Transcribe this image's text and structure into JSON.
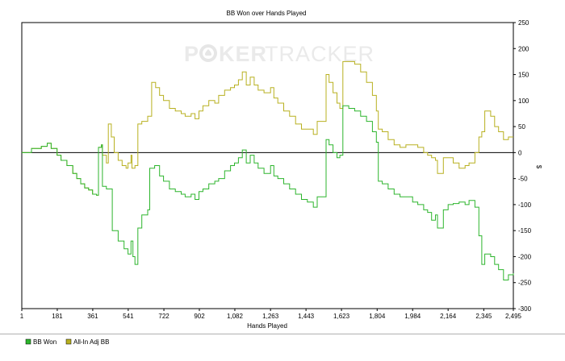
{
  "chart_data": {
    "type": "line",
    "title": "BB Won over Hands Played",
    "xlabel": "Hands Played",
    "ylabel": "",
    "y_unit_label": "$",
    "watermark": {
      "part1": "P",
      "part2": "KER",
      "part3": "TRACKER"
    },
    "xlim": [
      1,
      2495
    ],
    "ylim": [
      -300,
      250
    ],
    "x_ticks": [
      1,
      181,
      361,
      541,
      722,
      902,
      1082,
      1263,
      1443,
      1623,
      1804,
      1984,
      2164,
      2345,
      2495
    ],
    "x_tick_labels": [
      "1",
      "181",
      "361",
      "541",
      "722",
      "902",
      "1,082",
      "1,263",
      "1,443",
      "1,623",
      "1,804",
      "1,984",
      "2,164",
      "2,345",
      "2,495"
    ],
    "y_ticks": [
      -300,
      -250,
      -200,
      -150,
      -100,
      -50,
      0,
      50,
      100,
      150,
      200,
      250
    ],
    "y_tick_labels": [
      "-300",
      "-250",
      "-200",
      "-150",
      "-100",
      "-50",
      "0",
      "50",
      "100",
      "150",
      "200",
      "250"
    ],
    "y_axis_position": "right",
    "grid": false,
    "zero_line": true,
    "legend_position": "bottom-left",
    "series": [
      {
        "name": "BB Won",
        "color": "#2db52d",
        "points": [
          [
            1,
            0
          ],
          [
            50,
            8
          ],
          [
            100,
            12
          ],
          [
            130,
            18
          ],
          [
            150,
            8
          ],
          [
            180,
            -5
          ],
          [
            200,
            -15
          ],
          [
            230,
            -25
          ],
          [
            260,
            -40
          ],
          [
            280,
            -50
          ],
          [
            300,
            -60
          ],
          [
            320,
            -68
          ],
          [
            340,
            -72
          ],
          [
            360,
            -80
          ],
          [
            380,
            -82
          ],
          [
            390,
            10
          ],
          [
            405,
            15
          ],
          [
            410,
            -65
          ],
          [
            430,
            -70
          ],
          [
            460,
            -150
          ],
          [
            490,
            -170
          ],
          [
            520,
            -185
          ],
          [
            540,
            -195
          ],
          [
            555,
            -170
          ],
          [
            565,
            -200
          ],
          [
            575,
            -215
          ],
          [
            590,
            -145
          ],
          [
            610,
            -120
          ],
          [
            640,
            -110
          ],
          [
            650,
            -30
          ],
          [
            675,
            -25
          ],
          [
            700,
            -45
          ],
          [
            720,
            -55
          ],
          [
            750,
            -70
          ],
          [
            780,
            -75
          ],
          [
            810,
            -80
          ],
          [
            830,
            -85
          ],
          [
            860,
            -80
          ],
          [
            880,
            -90
          ],
          [
            900,
            -75
          ],
          [
            920,
            -70
          ],
          [
            950,
            -60
          ],
          [
            980,
            -55
          ],
          [
            1000,
            -50
          ],
          [
            1030,
            -35
          ],
          [
            1060,
            -25
          ],
          [
            1080,
            -20
          ],
          [
            1100,
            -10
          ],
          [
            1120,
            5
          ],
          [
            1140,
            -20
          ],
          [
            1160,
            -5
          ],
          [
            1180,
            -20
          ],
          [
            1200,
            -30
          ],
          [
            1230,
            -40
          ],
          [
            1263,
            -25
          ],
          [
            1280,
            -45
          ],
          [
            1300,
            -50
          ],
          [
            1330,
            -60
          ],
          [
            1360,
            -70
          ],
          [
            1390,
            -80
          ],
          [
            1420,
            -90
          ],
          [
            1450,
            -95
          ],
          [
            1480,
            -105
          ],
          [
            1500,
            -85
          ],
          [
            1530,
            -85
          ],
          [
            1545,
            25
          ],
          [
            1560,
            15
          ],
          [
            1580,
            0
          ],
          [
            1600,
            -10
          ],
          [
            1615,
            -5
          ],
          [
            1630,
            90
          ],
          [
            1660,
            85
          ],
          [
            1690,
            80
          ],
          [
            1720,
            70
          ],
          [
            1750,
            60
          ],
          [
            1780,
            40
          ],
          [
            1800,
            20
          ],
          [
            1810,
            -55
          ],
          [
            1830,
            -60
          ],
          [
            1860,
            -70
          ],
          [
            1890,
            -80
          ],
          [
            1920,
            -85
          ],
          [
            1950,
            -85
          ],
          [
            1984,
            -95
          ],
          [
            2010,
            -100
          ],
          [
            2040,
            -110
          ],
          [
            2060,
            -115
          ],
          [
            2080,
            -130
          ],
          [
            2100,
            -120
          ],
          [
            2110,
            -145
          ],
          [
            2140,
            -110
          ],
          [
            2164,
            -100
          ],
          [
            2190,
            -98
          ],
          [
            2220,
            -95
          ],
          [
            2250,
            -100
          ],
          [
            2270,
            -92
          ],
          [
            2300,
            -105
          ],
          [
            2320,
            -160
          ],
          [
            2335,
            -215
          ],
          [
            2350,
            -195
          ],
          [
            2380,
            -200
          ],
          [
            2400,
            -215
          ],
          [
            2420,
            -225
          ],
          [
            2445,
            -245
          ],
          [
            2470,
            -235
          ],
          [
            2495,
            -232
          ]
        ]
      },
      {
        "name": "All-In Adj BB",
        "color": "#b8b020",
        "points": [
          [
            1,
            0
          ],
          [
            50,
            8
          ],
          [
            100,
            12
          ],
          [
            130,
            18
          ],
          [
            150,
            8
          ],
          [
            180,
            -5
          ],
          [
            200,
            -15
          ],
          [
            230,
            -25
          ],
          [
            260,
            -40
          ],
          [
            280,
            -50
          ],
          [
            300,
            -60
          ],
          [
            320,
            -68
          ],
          [
            340,
            -72
          ],
          [
            360,
            -80
          ],
          [
            380,
            -82
          ],
          [
            390,
            10
          ],
          [
            405,
            15
          ],
          [
            410,
            -5
          ],
          [
            430,
            -20
          ],
          [
            440,
            55
          ],
          [
            455,
            30
          ],
          [
            470,
            0
          ],
          [
            490,
            -15
          ],
          [
            510,
            -25
          ],
          [
            530,
            -30
          ],
          [
            540,
            -20
          ],
          [
            555,
            -5
          ],
          [
            560,
            -30
          ],
          [
            575,
            -25
          ],
          [
            590,
            55
          ],
          [
            610,
            60
          ],
          [
            640,
            70
          ],
          [
            660,
            135
          ],
          [
            680,
            125
          ],
          [
            700,
            110
          ],
          [
            720,
            100
          ],
          [
            750,
            85
          ],
          [
            780,
            80
          ],
          [
            810,
            75
          ],
          [
            830,
            70
          ],
          [
            860,
            75
          ],
          [
            880,
            65
          ],
          [
            900,
            80
          ],
          [
            920,
            90
          ],
          [
            950,
            100
          ],
          [
            980,
            95
          ],
          [
            1000,
            110
          ],
          [
            1030,
            120
          ],
          [
            1060,
            125
          ],
          [
            1080,
            130
          ],
          [
            1100,
            140
          ],
          [
            1120,
            155
          ],
          [
            1140,
            130
          ],
          [
            1160,
            145
          ],
          [
            1180,
            130
          ],
          [
            1200,
            120
          ],
          [
            1230,
            115
          ],
          [
            1263,
            125
          ],
          [
            1280,
            105
          ],
          [
            1300,
            95
          ],
          [
            1330,
            80
          ],
          [
            1360,
            70
          ],
          [
            1390,
            55
          ],
          [
            1420,
            45
          ],
          [
            1450,
            45
          ],
          [
            1480,
            35
          ],
          [
            1500,
            60
          ],
          [
            1530,
            60
          ],
          [
            1545,
            150
          ],
          [
            1560,
            135
          ],
          [
            1580,
            115
          ],
          [
            1600,
            95
          ],
          [
            1615,
            85
          ],
          [
            1630,
            175
          ],
          [
            1660,
            175
          ],
          [
            1690,
            170
          ],
          [
            1720,
            155
          ],
          [
            1750,
            135
          ],
          [
            1780,
            110
          ],
          [
            1800,
            80
          ],
          [
            1810,
            45
          ],
          [
            1830,
            40
          ],
          [
            1860,
            25
          ],
          [
            1890,
            15
          ],
          [
            1920,
            10
          ],
          [
            1950,
            15
          ],
          [
            1984,
            15
          ],
          [
            2010,
            10
          ],
          [
            2040,
            0
          ],
          [
            2060,
            -5
          ],
          [
            2080,
            -10
          ],
          [
            2100,
            -15
          ],
          [
            2110,
            -40
          ],
          [
            2140,
            -10
          ],
          [
            2164,
            -10
          ],
          [
            2190,
            -20
          ],
          [
            2220,
            -30
          ],
          [
            2250,
            -25
          ],
          [
            2270,
            -20
          ],
          [
            2300,
            0
          ],
          [
            2320,
            30
          ],
          [
            2335,
            40
          ],
          [
            2350,
            80
          ],
          [
            2380,
            70
          ],
          [
            2400,
            50
          ],
          [
            2420,
            40
          ],
          [
            2445,
            25
          ],
          [
            2470,
            30
          ],
          [
            2495,
            30
          ]
        ]
      }
    ]
  }
}
